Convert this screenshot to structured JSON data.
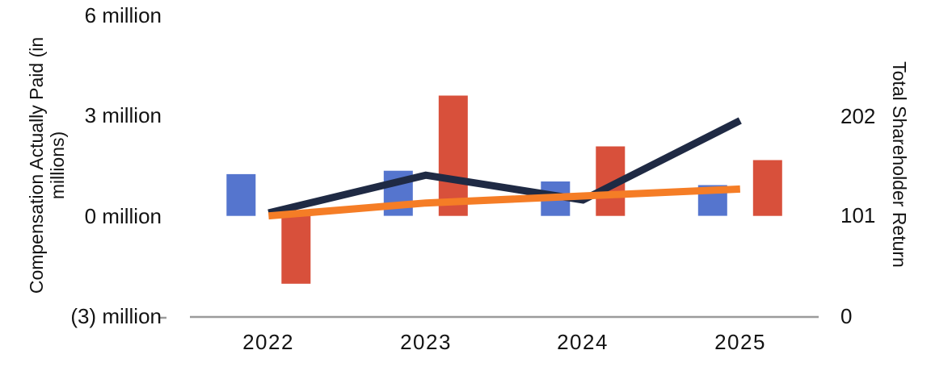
{
  "chart_data": {
    "type": "combo",
    "title": "",
    "grid": "off",
    "legend": "none",
    "background": "#FFFFFF",
    "text_color": "#131313",
    "categories": [
      "2022",
      "2023",
      "2024",
      "2025"
    ],
    "series": [
      {
        "id": "blue-bars",
        "type": "bar",
        "axis": "left",
        "color": "#5575CE",
        "values": [
          1.25,
          1.35,
          1.03,
          0.92
        ]
      },
      {
        "id": "red-bars",
        "type": "bar",
        "axis": "left",
        "color": "#D8503B",
        "values": [
          -2.03,
          3.6,
          2.08,
          1.67
        ]
      },
      {
        "id": "navy-line",
        "type": "line",
        "axis": "right",
        "color": "#1F2A44",
        "values": [
          104,
          142,
          117,
          197
        ]
      },
      {
        "id": "orange-line",
        "type": "line",
        "axis": "right",
        "color": "#F57D26",
        "values": [
          101,
          114,
          121,
          128
        ]
      }
    ],
    "left_axis": {
      "label": "Compensation Actually Paid (in millions)",
      "ticks": [
        "6 million",
        "3 million",
        "0 million",
        "(3) million"
      ],
      "tick_values": [
        6,
        3,
        0,
        -3
      ],
      "range": [
        -3,
        6
      ]
    },
    "right_axis": {
      "label": "Total Shareholder Return",
      "ticks": [
        "202",
        "101",
        "0"
      ],
      "tick_values": [
        202,
        101,
        0
      ],
      "range": [
        0,
        303
      ]
    },
    "x_axis": {
      "baseline_color": "#9B9B9B"
    }
  }
}
